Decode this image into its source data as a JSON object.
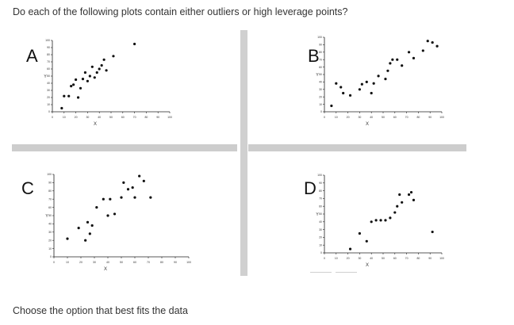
{
  "question": "Do each of the following plots contain either outliers or high leverage points?",
  "footer": "Choose the option that best fits the data",
  "panels": [
    {
      "label": "A",
      "xlabel": "X",
      "ylabel": "Y",
      "xticks": [
        "0",
        "10",
        "20",
        "30",
        "40",
        "50",
        "60",
        "70",
        "80",
        "90",
        "100"
      ],
      "yticks": [
        "0",
        "10",
        "20",
        "30",
        "40",
        "50",
        "60",
        "70",
        "80",
        "90",
        "100"
      ]
    },
    {
      "label": "B",
      "xlabel": "X",
      "ylabel": "Y",
      "xticks": [
        "0",
        "10",
        "20",
        "30",
        "40",
        "50",
        "60",
        "70",
        "80",
        "90",
        "100"
      ],
      "yticks": [
        "0",
        "10",
        "20",
        "30",
        "40",
        "50",
        "60",
        "70",
        "80",
        "90",
        "100"
      ]
    },
    {
      "label": "C",
      "xlabel": "X",
      "ylabel": "Y",
      "xticks": [
        "0",
        "10",
        "20",
        "30",
        "40",
        "50",
        "60",
        "70",
        "80",
        "90",
        "100"
      ],
      "yticks": [
        "0",
        "10",
        "20",
        "30",
        "40",
        "50",
        "60",
        "70",
        "80",
        "90",
        "100"
      ]
    },
    {
      "label": "D",
      "xlabel": "X",
      "ylabel": "Y",
      "xticks": [
        "0",
        "10",
        "20",
        "30",
        "40",
        "50",
        "60",
        "70",
        "80",
        "90",
        "100"
      ],
      "yticks": [
        "0",
        "10",
        "20",
        "30",
        "40",
        "50",
        "60",
        "70",
        "80",
        "90",
        "100"
      ]
    }
  ],
  "chart_data": [
    {
      "type": "scatter",
      "title": "A",
      "xlabel": "X",
      "ylabel": "Y",
      "xlim": [
        0,
        100
      ],
      "ylim": [
        0,
        100
      ],
      "grid": false,
      "x": [
        8,
        10,
        14,
        16,
        18,
        20,
        22,
        24,
        26,
        28,
        30,
        32,
        34,
        36,
        38,
        40,
        42,
        44,
        46,
        52,
        70
      ],
      "y": [
        5,
        22,
        22,
        36,
        38,
        45,
        20,
        33,
        46,
        55,
        43,
        50,
        63,
        48,
        55,
        60,
        65,
        73,
        58,
        78,
        95
      ]
    },
    {
      "type": "scatter",
      "title": "B",
      "xlabel": "X",
      "ylabel": "Y",
      "xlim": [
        0,
        100
      ],
      "ylim": [
        0,
        100
      ],
      "grid": false,
      "x": [
        6,
        10,
        14,
        16,
        22,
        30,
        32,
        36,
        40,
        42,
        46,
        52,
        54,
        56,
        58,
        62,
        66,
        72,
        76,
        84,
        88,
        92,
        96
      ],
      "y": [
        8,
        38,
        33,
        25,
        22,
        30,
        37,
        40,
        25,
        38,
        48,
        44,
        55,
        65,
        70,
        70,
        62,
        80,
        72,
        82,
        95,
        93,
        88
      ]
    },
    {
      "type": "scatter",
      "title": "C",
      "xlabel": "X",
      "ylabel": "Y",
      "xlim": [
        0,
        120
      ],
      "ylim": [
        0,
        100
      ],
      "grid": false,
      "x": [
        12,
        22,
        28,
        30,
        32,
        34,
        38,
        44,
        48,
        50,
        54,
        60,
        62,
        66,
        70,
        72,
        76,
        80,
        86
      ],
      "y": [
        22,
        35,
        20,
        42,
        28,
        38,
        60,
        70,
        50,
        70,
        52,
        72,
        90,
        82,
        84,
        72,
        98,
        92,
        72
      ]
    },
    {
      "type": "scatter",
      "title": "D",
      "xlabel": "X",
      "ylabel": "Y",
      "xlim": [
        0,
        100
      ],
      "ylim": [
        0,
        100
      ],
      "grid": false,
      "x": [
        22,
        30,
        36,
        40,
        44,
        48,
        52,
        56,
        60,
        62,
        64,
        66,
        72,
        74,
        76,
        92
      ],
      "y": [
        5,
        25,
        15,
        40,
        42,
        42,
        42,
        45,
        52,
        60,
        75,
        65,
        75,
        78,
        68,
        27
      ]
    }
  ]
}
